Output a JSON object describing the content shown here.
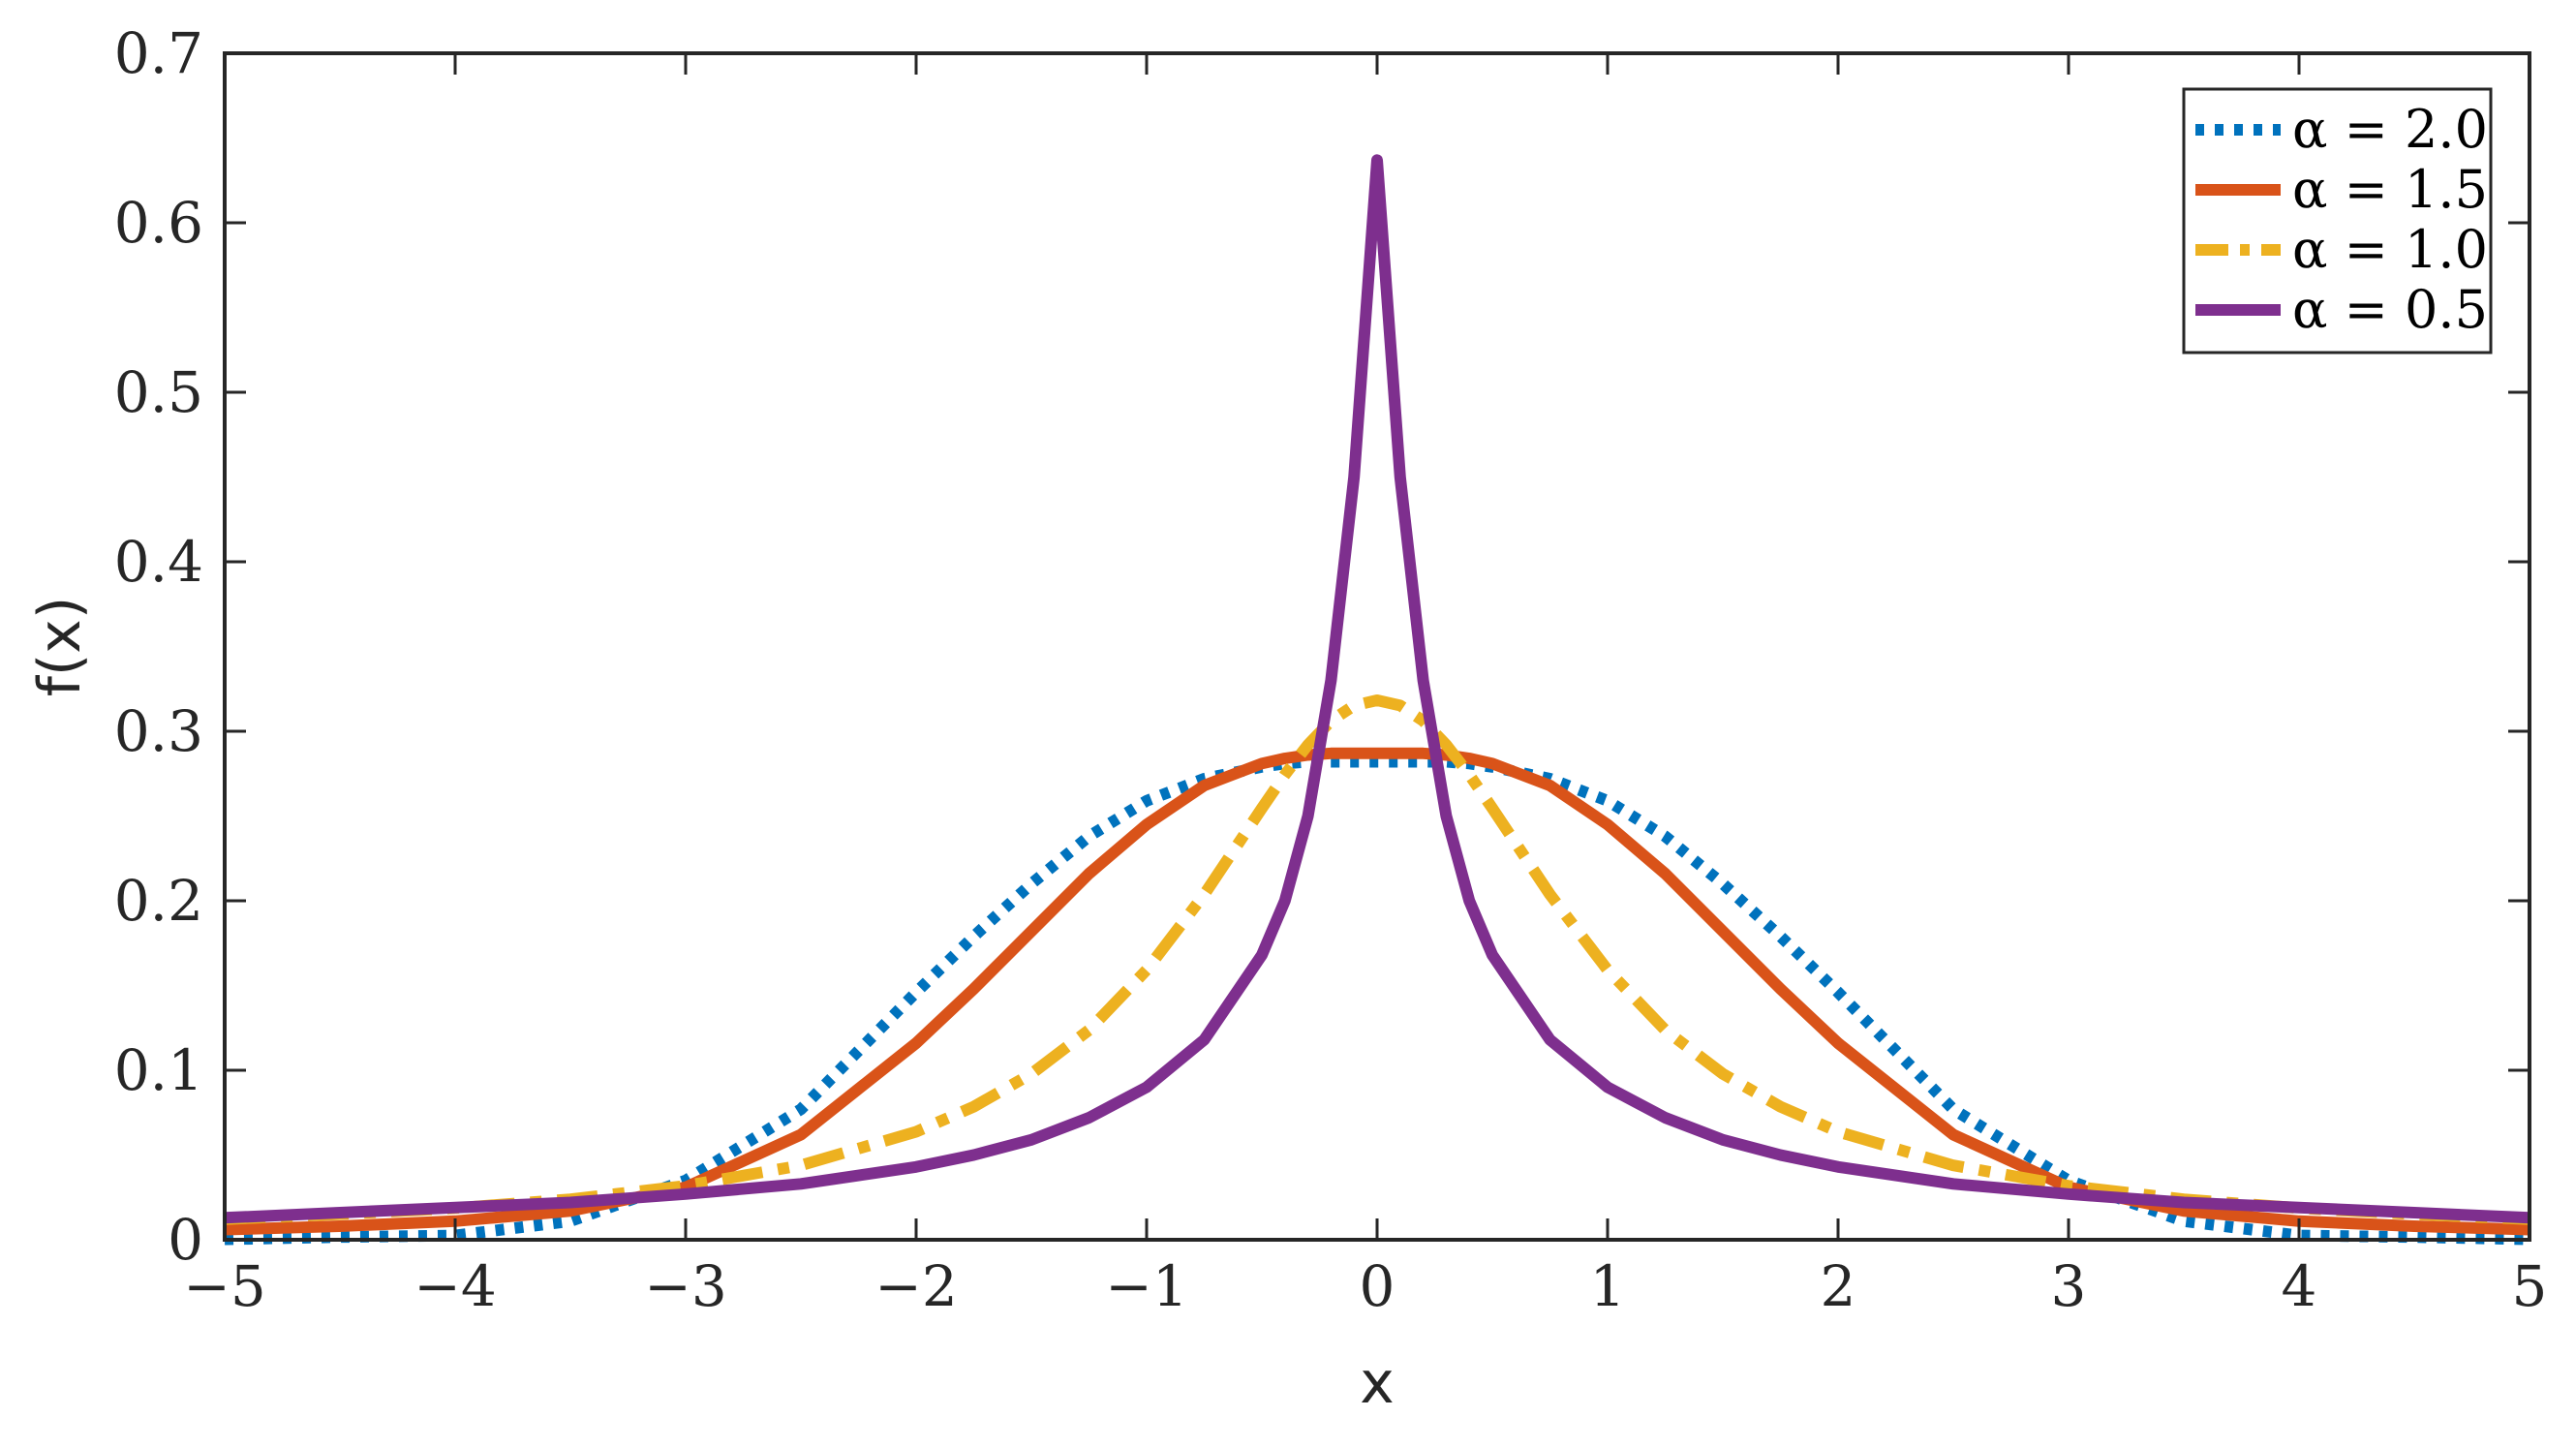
{
  "chart_data": {
    "type": "line",
    "title": "",
    "xlabel": "x",
    "ylabel": "f(x)",
    "xlim": [
      -5,
      5
    ],
    "ylim": [
      0,
      0.7
    ],
    "xticks": [
      -5,
      -4,
      -3,
      -2,
      -1,
      0,
      1,
      2,
      3,
      4,
      5
    ],
    "xtick_labels": [
      "−5",
      "−4",
      "−3",
      "−2",
      "−1",
      "0",
      "1",
      "2",
      "3",
      "4",
      "5"
    ],
    "yticks": [
      0,
      0.1,
      0.2,
      0.3,
      0.4,
      0.5,
      0.6,
      0.7
    ],
    "ytick_labels": [
      "0",
      "0.1",
      "0.2",
      "0.3",
      "0.4",
      "0.5",
      "0.6",
      "0.7"
    ],
    "grid": false,
    "legend_position": "top-right",
    "x": [
      -5,
      -4.5,
      -4,
      -3.5,
      -3,
      -2.5,
      -2,
      -1.75,
      -1.5,
      -1.25,
      -1,
      -0.75,
      -0.5,
      -0.4,
      -0.3,
      -0.2,
      -0.1,
      0,
      0.1,
      0.2,
      0.3,
      0.4,
      0.5,
      0.75,
      1,
      1.25,
      1.5,
      1.75,
      2,
      2.5,
      3,
      3.5,
      4,
      4.5,
      5
    ],
    "series": [
      {
        "name": "α = 2.0",
        "color": "#0072BD",
        "style": "dotted",
        "values": [
          0.0003,
          0.0016,
          0.0025,
          0.011,
          0.035,
          0.077,
          0.146,
          0.179,
          0.21,
          0.238,
          0.259,
          0.272,
          0.279,
          0.281,
          0.282,
          0.282,
          0.282,
          0.282,
          0.282,
          0.282,
          0.282,
          0.281,
          0.279,
          0.272,
          0.259,
          0.238,
          0.21,
          0.179,
          0.146,
          0.077,
          0.035,
          0.011,
          0.0025,
          0.0016,
          0.0003
        ]
      },
      {
        "name": "α = 1.5",
        "color": "#D95319",
        "style": "solid",
        "values": [
          0.006,
          0.008,
          0.011,
          0.017,
          0.031,
          0.062,
          0.116,
          0.148,
          0.182,
          0.216,
          0.245,
          0.268,
          0.281,
          0.284,
          0.286,
          0.287,
          0.287,
          0.287,
          0.287,
          0.287,
          0.286,
          0.284,
          0.281,
          0.268,
          0.245,
          0.216,
          0.182,
          0.148,
          0.116,
          0.062,
          0.031,
          0.017,
          0.011,
          0.008,
          0.006
        ]
      },
      {
        "name": "α = 1.0",
        "color": "#EDB120",
        "style": "dashdot",
        "values": [
          0.0122,
          0.0151,
          0.0187,
          0.0239,
          0.0318,
          0.0439,
          0.0637,
          0.0785,
          0.0979,
          0.1237,
          0.1592,
          0.2037,
          0.2546,
          0.2744,
          0.292,
          0.3061,
          0.3152,
          0.3183,
          0.3152,
          0.3061,
          0.292,
          0.2744,
          0.2546,
          0.2037,
          0.1592,
          0.1237,
          0.0979,
          0.0785,
          0.0637,
          0.0439,
          0.0318,
          0.0239,
          0.0187,
          0.0151,
          0.0122
        ]
      },
      {
        "name": "α = 0.5",
        "color": "#7E2F8E",
        "style": "solid",
        "values": [
          0.013,
          0.016,
          0.019,
          0.022,
          0.027,
          0.033,
          0.043,
          0.05,
          0.059,
          0.072,
          0.09,
          0.118,
          0.168,
          0.2,
          0.25,
          0.33,
          0.45,
          0.637,
          0.45,
          0.33,
          0.25,
          0.2,
          0.168,
          0.118,
          0.09,
          0.072,
          0.059,
          0.05,
          0.043,
          0.033,
          0.027,
          0.022,
          0.019,
          0.016,
          0.013
        ]
      }
    ]
  }
}
